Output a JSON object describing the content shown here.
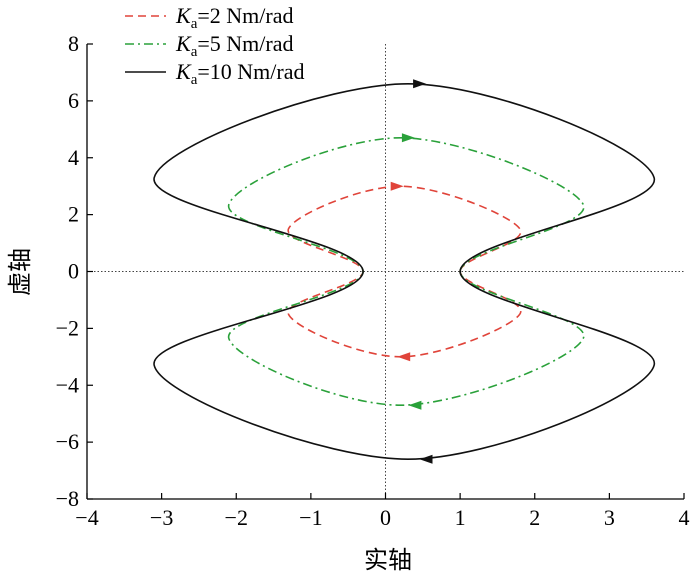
{
  "chart_data": {
    "type": "line",
    "title": "",
    "xlabel": "实轴",
    "ylabel": "虚轴",
    "xlim": [
      -4,
      4
    ],
    "ylim": [
      -8,
      8
    ],
    "xticks": [
      -4,
      -3,
      -2,
      -1,
      0,
      1,
      2,
      3,
      4
    ],
    "yticks": [
      -8,
      -6,
      -4,
      -2,
      0,
      2,
      4,
      6,
      8
    ],
    "xtick_labels": [
      "−4",
      "−3",
      "−2",
      "−1",
      "0",
      "1",
      "2",
      "3",
      "4"
    ],
    "ytick_labels": [
      "−8",
      "−6",
      "−4",
      "−2",
      "0",
      "2",
      "4",
      "6",
      "8"
    ],
    "grid": false,
    "zero_lines": true,
    "legend": {
      "placement": "top-left",
      "entries": [
        {
          "k": "K",
          "sub": "a",
          "rest": "=2 Nm/rad"
        },
        {
          "k": "K",
          "sub": "a",
          "rest": "=5 Nm/rad"
        },
        {
          "k": "K",
          "sub": "a",
          "rest": "=10 Nm/rad"
        }
      ]
    },
    "series": [
      {
        "name": "Ka=2 Nm/rad",
        "color": "#e0443a",
        "dash": "dashed",
        "points": [
          [
            1.0,
            0
          ],
          [
            1.8,
            1.5
          ],
          [
            0.2,
            3.0
          ],
          [
            -1.3,
            1.5
          ],
          [
            -0.3,
            0
          ],
          [
            -1.3,
            -1.5
          ],
          [
            0.2,
            -3.0
          ],
          [
            1.8,
            -1.5
          ],
          [
            1.0,
            0
          ]
        ],
        "arrows": [
          {
            "at": [
              0.15,
              3.0
            ],
            "direction": "right"
          },
          {
            "at": [
              0.25,
              -3.0
            ],
            "direction": "left"
          }
        ]
      },
      {
        "name": "Ka=5 Nm/rad",
        "color": "#2aa13a",
        "dash": "dash-dot",
        "points": [
          [
            1.0,
            0
          ],
          [
            2.65,
            2.35
          ],
          [
            0.2,
            4.7
          ],
          [
            -2.1,
            2.35
          ],
          [
            -0.3,
            0
          ],
          [
            -2.1,
            -2.35
          ],
          [
            0.2,
            -4.7
          ],
          [
            2.65,
            -2.35
          ],
          [
            1.0,
            0
          ]
        ],
        "arrows": [
          {
            "at": [
              0.3,
              4.7
            ],
            "direction": "right"
          },
          {
            "at": [
              0.4,
              -4.7
            ],
            "direction": "left"
          }
        ]
      },
      {
        "name": "Ka=10 Nm/rad",
        "color": "#111111",
        "dash": "solid",
        "points": [
          [
            1.0,
            0
          ],
          [
            3.6,
            3.3
          ],
          [
            0.3,
            6.6
          ],
          [
            -3.1,
            3.3
          ],
          [
            -0.3,
            0
          ],
          [
            -3.1,
            -3.3
          ],
          [
            0.3,
            -6.6
          ],
          [
            3.6,
            -3.3
          ],
          [
            1.0,
            0
          ]
        ],
        "arrows": [
          {
            "at": [
              0.45,
              6.6
            ],
            "direction": "right"
          },
          {
            "at": [
              0.55,
              -6.6
            ],
            "direction": "left"
          }
        ]
      }
    ]
  }
}
